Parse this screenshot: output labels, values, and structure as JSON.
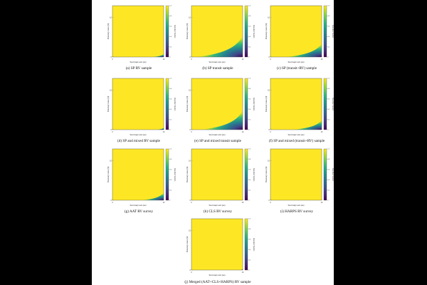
{
  "figure": {
    "panels": [
      {
        "caption": "(a) SP RV sample",
        "chart": 0
      },
      {
        "caption": "(b) SP transit sample",
        "chart": 1
      },
      {
        "caption": "(c) SP (transit+RV) sample",
        "chart": 2
      },
      {
        "caption": "(d) SP and mixed RV sample",
        "chart": 3
      },
      {
        "caption": "(e) SP and mixed transit sample",
        "chart": 4
      },
      {
        "caption": "(f) SP and mixed (transit+RV) sample",
        "chart": 5
      },
      {
        "caption": "(g) AAT RV survey",
        "chart": 6
      },
      {
        "caption": "(h) CLS RV survey",
        "chart": 7
      },
      {
        "caption": "(i) HARPS RV survey",
        "chart": 8
      },
      {
        "caption": "(j) Merged (AAT+CLS+HARPS) RV sample",
        "chart": 9
      }
    ]
  },
  "colors": {
    "colormap": [
      "#440154",
      "#482878",
      "#3e4989",
      "#31688e",
      "#26828e",
      "#1f9e89",
      "#35b779",
      "#6ece58",
      "#b5de2b",
      "#fde725"
    ]
  },
  "chart_data": [
    {
      "type": "heatmap",
      "xlabel": "Semimajor axis (au)",
      "ylabel": "Planetary mass (M)",
      "colorbar_label": "Detection fraction",
      "xlim": [
        0,
        10
      ],
      "ylim": [
        0,
        13
      ],
      "x_ticks": [
        "0",
        "10"
      ],
      "y_ticks": [
        "0",
        "10"
      ],
      "colorbar_ticks": [
        "0",
        "0.2",
        "0.4",
        "0.6",
        "0.8",
        "1.0"
      ],
      "zlim": [
        0,
        1
      ],
      "low_region": {
        "corner": "bottom-right",
        "x_start": 7.5,
        "y_end": 0.8
      }
    },
    {
      "type": "heatmap",
      "xlabel": "Semimajor axis (au)",
      "ylabel": "Planetary mass (M)",
      "colorbar_label": "Detection fraction",
      "xlim": [
        0,
        10
      ],
      "ylim": [
        0,
        13
      ],
      "x_ticks": [
        "0",
        "10"
      ],
      "y_ticks": [
        "0",
        "10"
      ],
      "colorbar_ticks": [
        "0",
        "0.2",
        "0.4",
        "0.6",
        "0.8",
        "1.0"
      ],
      "zlim": [
        0,
        1
      ],
      "low_region": {
        "corner": "bottom-right",
        "x_start": 0.5,
        "y_end": 5.5
      }
    },
    {
      "type": "heatmap",
      "xlabel": "Semimajor axis (au)",
      "ylabel": "Planetary mass (M)",
      "colorbar_label": "Detection fraction",
      "xlim": [
        0,
        10
      ],
      "ylim": [
        0,
        13
      ],
      "x_ticks": [
        "0",
        "10"
      ],
      "y_ticks": [
        "0",
        "10"
      ],
      "colorbar_ticks": [
        "0",
        "0.2",
        "0.4",
        "0.6",
        "0.8",
        "1.0"
      ],
      "zlim": [
        0,
        1
      ],
      "low_region": {
        "corner": "bottom-right",
        "x_start": 2.5,
        "y_end": 3.5
      }
    },
    {
      "type": "heatmap",
      "xlabel": "Semimajor axis (au)",
      "ylabel": "Planetary mass (M)",
      "colorbar_label": "Detection fraction",
      "xlim": [
        0,
        10
      ],
      "ylim": [
        0,
        13
      ],
      "x_ticks": [
        "0",
        "10"
      ],
      "y_ticks": [
        "0",
        "10"
      ],
      "colorbar_ticks": [
        "0",
        "0.2",
        "0.4",
        "0.6",
        "0.8",
        "1.0"
      ],
      "zlim": [
        0,
        1
      ],
      "low_region": {
        "corner": "bottom-right",
        "x_start": 8.5,
        "y_end": 0.5
      }
    },
    {
      "type": "heatmap",
      "xlabel": "Semimajor axis (au)",
      "ylabel": "Planetary mass (M)",
      "colorbar_label": "Detection fraction",
      "xlim": [
        0,
        10
      ],
      "ylim": [
        0,
        13
      ],
      "x_ticks": [
        "0",
        "10"
      ],
      "y_ticks": [
        "0",
        "10"
      ],
      "colorbar_ticks": [
        "0",
        "0.2",
        "0.4",
        "0.6",
        "0.8",
        "1.0"
      ],
      "zlim": [
        0,
        1
      ],
      "low_region": {
        "corner": "bottom-right",
        "x_start": 1.5,
        "y_end": 5.0
      }
    },
    {
      "type": "heatmap",
      "xlabel": "Semimajor axis (au)",
      "ylabel": "Planetary mass (M)",
      "colorbar_label": "Detection fraction",
      "xlim": [
        0,
        10
      ],
      "ylim": [
        0,
        13
      ],
      "x_ticks": [
        "0",
        "10"
      ],
      "y_ticks": [
        "0",
        "10"
      ],
      "colorbar_ticks": [
        "0",
        "0.2",
        "0.4",
        "0.6",
        "0.8",
        "1.0"
      ],
      "zlim": [
        0,
        1
      ],
      "low_region": {
        "corner": "bottom-right",
        "x_start": 4.0,
        "y_end": 2.5
      }
    },
    {
      "type": "heatmap",
      "xlabel": "Semimajor axis (au)",
      "ylabel": "Planetary mass (M)",
      "colorbar_label": "Detection fraction",
      "xlim": [
        0,
        10
      ],
      "ylim": [
        0,
        13
      ],
      "x_ticks": [
        "0",
        "10"
      ],
      "y_ticks": [
        "0",
        "10"
      ],
      "colorbar_ticks": [
        "0",
        "0.2",
        "0.4",
        "0.6",
        "0.8",
        "1.0"
      ],
      "zlim": [
        0,
        1
      ],
      "low_region": {
        "corner": "bottom-right",
        "x_start": 5.5,
        "y_end": 2.0
      }
    },
    {
      "type": "heatmap",
      "xlabel": "Semimajor axis (au)",
      "ylabel": "Planetary mass (M)",
      "colorbar_label": "Detection fraction",
      "xlim": [
        0,
        10
      ],
      "ylim": [
        0,
        13
      ],
      "x_ticks": [
        "0",
        "10"
      ],
      "y_ticks": [
        "0",
        "10"
      ],
      "colorbar_ticks": [
        "0",
        "0.2",
        "0.4",
        "0.6",
        "0.8",
        "1.0"
      ],
      "zlim": [
        0,
        1
      ],
      "low_region": null
    },
    {
      "type": "heatmap",
      "xlabel": "Semimajor axis (au)",
      "ylabel": "Planetary mass (M)",
      "colorbar_label": "Detection fraction",
      "xlim": [
        0,
        10
      ],
      "ylim": [
        0,
        13
      ],
      "x_ticks": [
        "0",
        "10"
      ],
      "y_ticks": [
        "0",
        "10"
      ],
      "colorbar_ticks": [
        "0",
        "0.2",
        "0.4",
        "0.6",
        "0.8",
        "1.0"
      ],
      "zlim": [
        0,
        1
      ],
      "low_region": null
    },
    {
      "type": "heatmap",
      "xlabel": "Semimajor axis (au)",
      "ylabel": "Planetary mass (M)",
      "colorbar_label": "Detection fraction",
      "xlim": [
        0,
        10
      ],
      "ylim": [
        0,
        13
      ],
      "x_ticks": [
        "0",
        "10"
      ],
      "y_ticks": [
        "0",
        "10"
      ],
      "colorbar_ticks": [
        "0",
        "0.2",
        "0.4",
        "0.6",
        "0.8",
        "1.0"
      ],
      "zlim": [
        0,
        1
      ],
      "low_region": {
        "corner": "bottom-right",
        "x_start": 9.5,
        "y_end": 0.3
      }
    }
  ]
}
